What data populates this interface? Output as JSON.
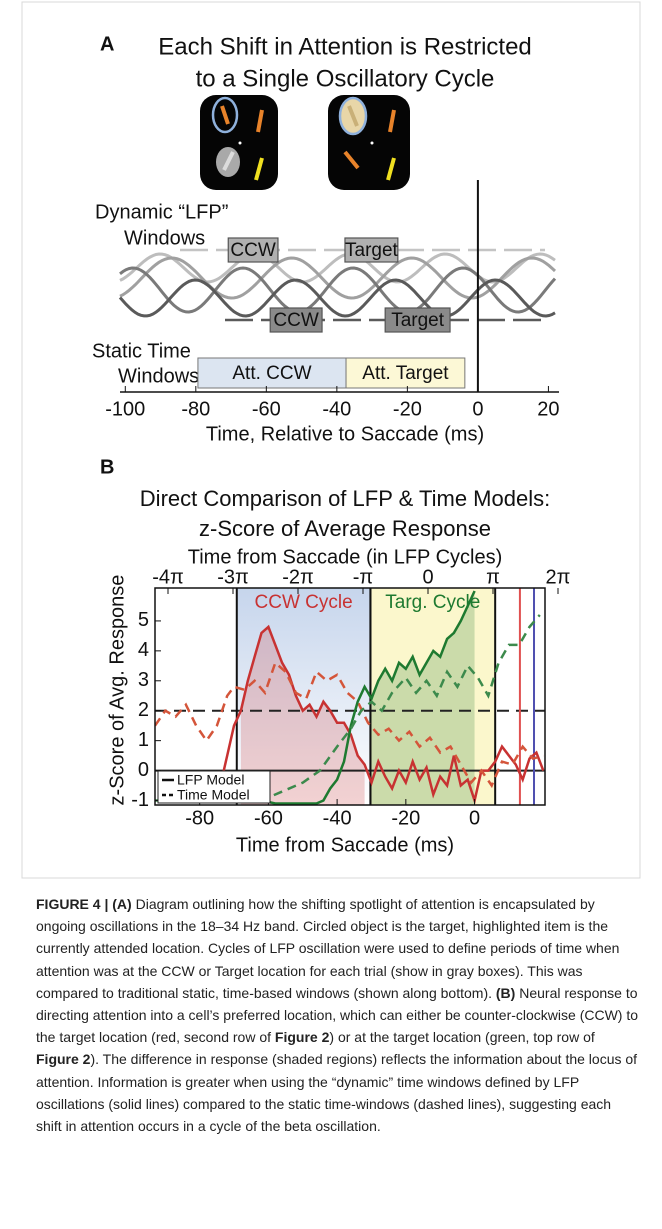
{
  "panel_a": {
    "label": "A",
    "title": [
      "Each Shift in Attention is Restricted",
      "to a Single Oscillatory Cycle"
    ],
    "dynamic_label": [
      "Dynamic “LFP”",
      "Windows"
    ],
    "dynamic_windows": [
      [
        {
          "label": "CCW",
          "start": -70.8,
          "end": -56.7
        },
        {
          "label": "Target",
          "start": -37.7,
          "end": -22.7
        }
      ],
      [
        {
          "label": "CCW",
          "start": -58.9,
          "end": -44.2
        },
        {
          "label": "Target",
          "start": -26.3,
          "end": -7.9
        }
      ]
    ],
    "static_label": [
      "Static Time",
      "Windows"
    ],
    "static_windows": [
      {
        "label": "Att. CCW",
        "start": -79.4,
        "end": -37.4,
        "color": "#dce5f1"
      },
      {
        "label": "Att. Target",
        "start": -37.4,
        "end": -3.7,
        "color": "#fcf8d6"
      }
    ],
    "xlim": [
      -101.5,
      23
    ],
    "xticks": [
      -100,
      -80,
      -60,
      -40,
      -20,
      0,
      20
    ],
    "xlabel": "Time, Relative to Saccade (ms)"
  },
  "chart_data": {
    "type": "line",
    "panel_label": "B",
    "title": [
      "Direct Comparison of LFP & Time Models:",
      "z-Score of Average Response"
    ],
    "x2label": "Time from Saccade (in LFP Cycles)",
    "xlabel": "Time from Saccade (ms)",
    "ylabel": "z-Score of Avg. Response",
    "xlim": [
      -93,
      20.5
    ],
    "xticks": [
      -80,
      -60,
      -40,
      -20,
      0
    ],
    "ylim": [
      -1.15,
      6.1
    ],
    "yticks": [
      -1,
      0,
      1,
      2,
      3,
      4,
      5
    ],
    "x2lim": [
      -4.2,
      1.8
    ],
    "x2ticks": [
      {
        "value": -4,
        "label": "-4π"
      },
      {
        "value": -3,
        "label": "-3π"
      },
      {
        "value": -2,
        "label": "-2π"
      },
      {
        "value": -1,
        "label": "-π"
      },
      0,
      {
        "value": 1,
        "label": "π"
      },
      {
        "value": 2,
        "label": "2π"
      }
    ],
    "regions": [
      {
        "label": "CCW Cycle",
        "start": -69.2,
        "end": -30.3,
        "color": "#c6d5ec",
        "label_color": "#c83232"
      },
      {
        "label": "Targ. Cycle",
        "start": -30.3,
        "end": 6,
        "color": "#fbf7cc",
        "label_color": "#1e7a30"
      }
    ],
    "hlines": [
      {
        "y": 2,
        "dashed": true
      },
      {
        "y": 0,
        "dashed": false
      }
    ],
    "vlines": [
      {
        "x": 13.2,
        "color": "#e05050"
      },
      {
        "x": 17.3,
        "color": "#5050b0"
      }
    ],
    "legend": [
      {
        "label": "LFP Model",
        "dashed": false
      },
      {
        "label": "Time Model",
        "dashed": true
      }
    ],
    "legend_position": "lower left",
    "series": [
      {
        "color": "#c83232",
        "dashed": false,
        "fill_region": 0,
        "x": [
          -75,
          -72,
          -70,
          -68,
          -66,
          -64,
          -62,
          -60,
          -58,
          -56,
          -54,
          -52,
          -50,
          -48,
          -46,
          -44,
          -42,
          -40,
          -38,
          -36,
          -34,
          -32,
          -30,
          -28,
          -26,
          -24,
          -22,
          -20,
          -18,
          -16,
          -14,
          -12,
          -10,
          -8,
          -6,
          -4,
          -2,
          0,
          2,
          4,
          6,
          8,
          10,
          12,
          14,
          16,
          18,
          20
        ],
        "values": [
          -1,
          0.5,
          1.5,
          2,
          3,
          3.8,
          4.6,
          4.8,
          4.2,
          3.6,
          3.2,
          2.5,
          2,
          2.2,
          1.8,
          2.3,
          2,
          1.6,
          1.6,
          1.2,
          0.5,
          0.2,
          -0.4,
          0.3,
          -0.2,
          -0.6,
          0,
          -0.4,
          0.3,
          -0.3,
          0.1,
          -0.8,
          -0.2,
          -0.5,
          0.5,
          -0.5,
          -0.3,
          -1,
          0,
          0,
          0.3,
          0.8,
          0.5,
          0.2,
          -0.3,
          0.4,
          0.6,
          0
        ]
      },
      {
        "color": "#d4553a",
        "dashed": true,
        "x": [
          -93,
          -90,
          -87,
          -84,
          -81,
          -78,
          -75,
          -72,
          -70,
          -67,
          -64,
          -61,
          -58,
          -55,
          -52,
          -49,
          -46,
          -43,
          -40,
          -37,
          -34,
          -31,
          -28,
          -25,
          -22,
          -19,
          -16,
          -13,
          -10,
          -7,
          -4,
          -1,
          2,
          5,
          8,
          11,
          14,
          17,
          20
        ],
        "values": [
          1.5,
          2,
          1.8,
          2.2,
          1.5,
          1,
          1.5,
          2.5,
          2.8,
          2.7,
          3,
          2.6,
          3.6,
          3.3,
          2.6,
          2.4,
          3.3,
          3,
          3.2,
          2.6,
          2.3,
          1.6,
          1.2,
          1.4,
          1,
          1.3,
          0.8,
          1.1,
          0.6,
          0.8,
          0.2,
          -0.4,
          0,
          -0.5,
          0.3,
          0.2,
          0.8,
          0.4,
          0.5
        ]
      },
      {
        "color": "#1e7a30",
        "dashed": false,
        "fill_region": 1,
        "x": [
          -90,
          -86,
          -82,
          -78,
          -74,
          -70,
          -66,
          -62,
          -58,
          -54,
          -50,
          -46,
          -44,
          -42,
          -40,
          -38,
          -36,
          -34,
          -32,
          -30,
          -28,
          -26,
          -24,
          -22,
          -20,
          -18,
          -16,
          -14,
          -12,
          -10,
          -8,
          -6,
          -4,
          -2,
          0
        ],
        "values": [
          -1,
          -0.5,
          -0.9,
          -0.4,
          -0.8,
          -0.2,
          -0.5,
          -1,
          -1.1,
          -1.1,
          -1.1,
          -1.1,
          -1,
          -0.6,
          -0.3,
          0.3,
          1.5,
          2.3,
          2.8,
          2.4,
          3,
          3.4,
          3,
          3.6,
          3.4,
          3.8,
          3.2,
          3.6,
          4,
          3.8,
          4.4,
          4.6,
          5,
          5.5,
          6
        ]
      },
      {
        "color": "#3c8a4c",
        "dashed": true,
        "x": [
          -93,
          -80,
          -70,
          -60,
          -50,
          -45,
          -40,
          -36,
          -33,
          -30,
          -27,
          -24,
          -20,
          -17,
          -14,
          -11,
          -8,
          -5,
          -2,
          1,
          4,
          7,
          10,
          13,
          16,
          19
        ],
        "values": [
          -1,
          -1,
          -0.8,
          -0.9,
          -0.4,
          0,
          0.8,
          1.4,
          2,
          2.3,
          2,
          2.6,
          3.1,
          2.6,
          3,
          2.5,
          3.3,
          2.8,
          3.5,
          3.1,
          2.5,
          3.6,
          4.2,
          4.2,
          4.8,
          5.2
        ]
      }
    ]
  },
  "caption": [
    {
      "text": "FIGURE 4 | (A)",
      "bold": true
    },
    {
      "text": " Diagram outlining how the shifting spotlight of attention is encapsulated by ongoing oscillations in the 18–34 Hz band. Circled object is the target, highlighted item is the currently attended location. Cycles of LFP oscillation were used to define periods of time when attention was at the CCW or Target location for each trial (show in gray boxes). This was compared to traditional static, time-based windows (shown along bottom). ",
      "bold": false
    },
    {
      "text": "(B)",
      "bold": true
    },
    {
      "text": " Neural response to directing attention into a cell’s preferred location, which can either be counter-clockwise (CCW) to the target location (red, second row of ",
      "bold": false
    },
    {
      "text": "Figure 2",
      "bold": true
    },
    {
      "text": ") or at the target location (green, top row of ",
      "bold": false
    },
    {
      "text": "Figure 2",
      "bold": true
    },
    {
      "text": "). The difference in response (shaded regions) reflects the information about the locus of attention. Information is greater when using the “dynamic” time windows defined by LFP oscillations (solid lines) compared to the static time-windows (dashed lines), suggesting each shift in attention occurs in a cycle of the beta oscillation.",
      "bold": false
    }
  ]
}
